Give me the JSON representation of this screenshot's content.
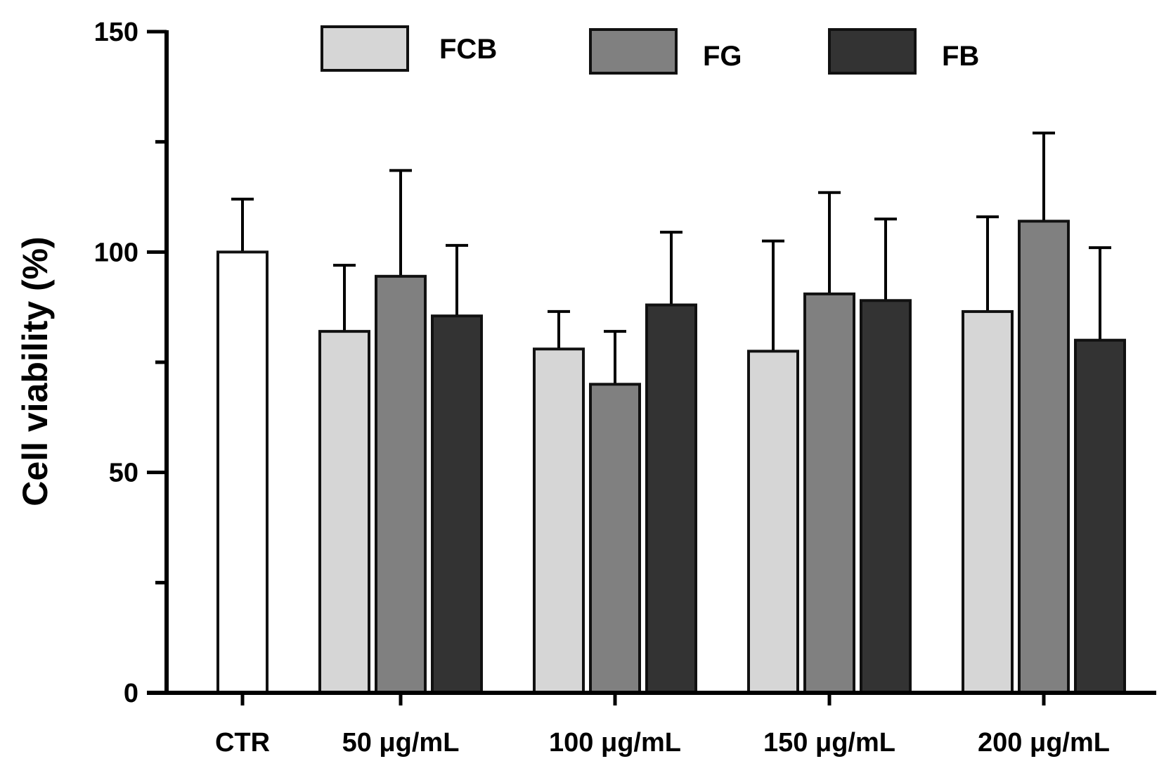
{
  "chart_data": {
    "type": "bar",
    "title": "",
    "xlabel": "",
    "ylabel": "Cell viability (%)",
    "ylim": [
      0,
      150
    ],
    "yticks": [
      0,
      50,
      100,
      150
    ],
    "yticks_minor": [
      25,
      75,
      125
    ],
    "grid": false,
    "legend_position": "top",
    "control": {
      "category": "CTR",
      "value": 100,
      "error": 12,
      "color": "#ffffff"
    },
    "categories": [
      "50 μg/mL",
      "100 μg/mL",
      "150 μg/mL",
      "200 μg/mL"
    ],
    "series": [
      {
        "name": "FCB",
        "color": "#d6d6d6",
        "values": [
          82,
          78,
          77.5,
          86.5
        ],
        "errors": [
          15,
          8.5,
          25,
          21.5
        ]
      },
      {
        "name": "FG",
        "color": "#808080",
        "values": [
          94.5,
          70,
          90.5,
          107
        ],
        "errors": [
          24,
          12,
          23,
          20
        ]
      },
      {
        "name": "FB",
        "color": "#333333",
        "values": [
          85.5,
          88,
          89,
          80
        ],
        "errors": [
          16,
          16.5,
          18.5,
          21
        ]
      }
    ]
  }
}
